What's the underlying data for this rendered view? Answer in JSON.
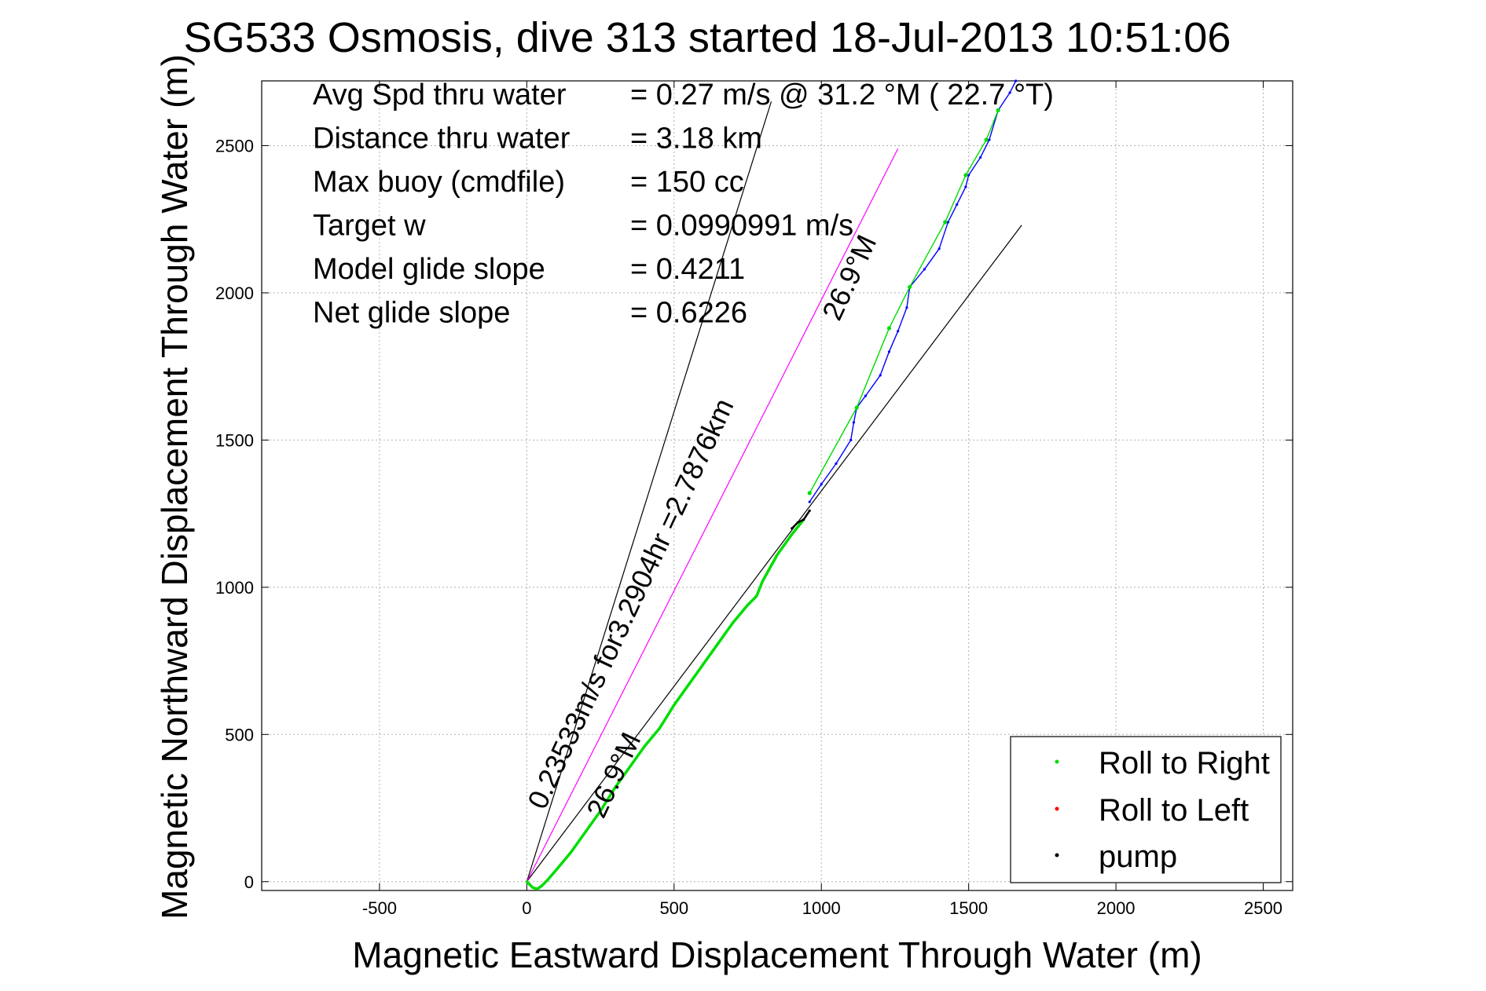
{
  "chart_data": {
    "type": "scatter",
    "title": "SG533 Osmosis, dive 313 started 18-Jul-2013 10:51:06",
    "xlabel": "Magnetic Eastward Displacement Through Water (m)",
    "ylabel": "Magnetic Northward Displacement Through Water (m)",
    "xlim": [
      -900,
      2600
    ],
    "ylim": [
      -30,
      2720
    ],
    "xticks": [
      -500,
      0,
      500,
      1000,
      1500,
      2000,
      2500
    ],
    "yticks": [
      0,
      500,
      1000,
      1500,
      2000,
      2500
    ],
    "xtick_labels": [
      "-500",
      "0",
      "500",
      "1000",
      "1500",
      "2000",
      "2500"
    ],
    "ytick_labels": [
      "0",
      "500",
      "1000",
      "1500",
      "2000",
      "2500"
    ],
    "grid": true,
    "legend_position": "bottom-right",
    "stats": [
      {
        "label": "Avg Spd thru water",
        "value": "=  0.27 m/s @  31.2 °M ( 22.7 °T)"
      },
      {
        "label": "Distance thru water",
        "value": "=  3.18 km"
      },
      {
        "label": "Max buoy (cmdfile)",
        "value": "= 150 cc"
      },
      {
        "label": "Target w",
        "value": "= 0.0990991 m/s"
      },
      {
        "label": "Model glide slope",
        "value": "= 0.4211"
      },
      {
        "label": "Net glide slope",
        "value": "= 0.6226"
      }
    ],
    "annotations": [
      {
        "text": "0.23533m/s for3.2904hr =2.7876km",
        "x": 60,
        "y": 240
      },
      {
        "text": "26.9°M",
        "x": 260,
        "y": 210
      },
      {
        "text": "26.9°M",
        "x": 1060,
        "y": 1900
      }
    ],
    "lines": [
      {
        "name": "",
        "color": "#000000",
        "x": [
          0,
          830
        ],
        "y": [
          0,
          2650
        ]
      },
      {
        "name": "",
        "color": "#000000",
        "x": [
          0,
          1680
        ],
        "y": [
          0,
          2230
        ]
      },
      {
        "name": "",
        "color": "#ff00ff",
        "x": [
          0,
          1260
        ],
        "y": [
          0,
          2490
        ]
      }
    ],
    "series": [
      {
        "name": "Roll to Right",
        "color": "#00dd00",
        "x": [
          0,
          10,
          20,
          35,
          50,
          70,
          100,
          150,
          200,
          250,
          300,
          350,
          400,
          450,
          500,
          550,
          600,
          650,
          700,
          750,
          780,
          800,
          850,
          900,
          940
        ],
        "y": [
          0,
          -10,
          -20,
          -25,
          -15,
          5,
          40,
          100,
          170,
          240,
          320,
          390,
          460,
          520,
          600,
          670,
          740,
          810,
          880,
          940,
          970,
          1020,
          1110,
          1180,
          1230
        ]
      },
      {
        "name": "Roll to Left",
        "color": "#ff0000",
        "x": [],
        "y": []
      },
      {
        "name": "pump",
        "color": "#000000",
        "x": [
          900,
          920,
          940,
          960
        ],
        "y": [
          1200,
          1220,
          1230,
          1260
        ]
      },
      {
        "name": "",
        "color": "#0000ff",
        "x": [
          960,
          1000,
          1050,
          1100,
          1110,
          1120,
          1150,
          1200,
          1230,
          1260,
          1290,
          1300,
          1350,
          1400,
          1430,
          1460,
          1490,
          1500,
          1540,
          1570,
          1600,
          1640,
          1660
        ],
        "y": [
          1290,
          1350,
          1420,
          1500,
          1560,
          1610,
          1650,
          1720,
          1800,
          1870,
          1950,
          2020,
          2080,
          2150,
          2240,
          2300,
          2360,
          2400,
          2460,
          2520,
          2620,
          2680,
          2720
        ]
      },
      {
        "name": "",
        "color": "#00dd00",
        "x": [
          960,
          1120,
          1230,
          1300,
          1420,
          1490,
          1560,
          1600
        ],
        "y": [
          1320,
          1610,
          1880,
          2020,
          2240,
          2400,
          2520,
          2620
        ]
      }
    ]
  }
}
